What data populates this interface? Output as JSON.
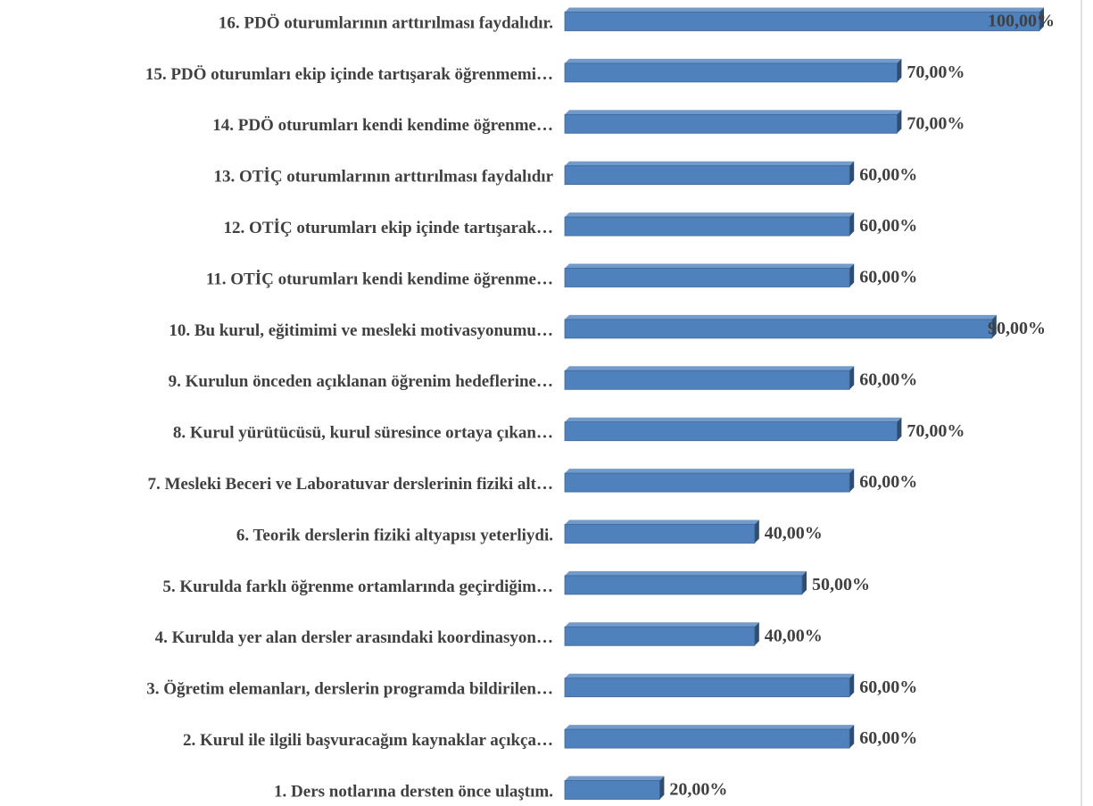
{
  "chart_data": {
    "type": "bar3d_horizontal",
    "categories": [
      "1. Ders notlarına dersten önce ulaştım.",
      "2. Kurul ile ilgili başvuracağım kaynaklar açıkça…",
      "3. Öğretim elemanları, derslerin programda bildirilen…",
      "4. Kurulda yer alan dersler arasındaki koordinasyon…",
      "5. Kurulda farklı öğrenme ortamlarında geçirdiğim…",
      "6. Teorik derslerin fiziki altyapısı yeterliydi.",
      "7. Mesleki Beceri ve Laboratuvar derslerinin fiziki alt…",
      "8. Kurul yürütücüsü, kurul süresince ortaya çıkan…",
      "9. Kurulun önceden açıklanan öğrenim hedeflerine…",
      "10. Bu kurul, eğitimimi ve mesleki motivasyonumu…",
      "11. OTİÇ oturumları kendi kendime öğrenme…",
      "12. OTİÇ  oturumları ekip içinde tartışarak…",
      "13. OTİÇ oturumlarının arttırılması faydalıdır",
      "14. PDÖ oturumları kendi kendime öğrenme…",
      "15. PDÖ  oturumları ekip içinde tartışarak öğrenmemi…",
      "16. PDÖ oturumlarının arttırılması faydalıdır."
    ],
    "values": [
      20,
      60,
      60,
      40,
      50,
      40,
      60,
      70,
      60,
      90,
      60,
      60,
      60,
      70,
      70,
      100
    ],
    "value_labels": [
      "20,00%",
      "60,00%",
      "60,00%",
      "40,00%",
      "50,00%",
      "40,00%",
      "60,00%",
      "70,00%",
      "60,00%",
      "90,00%",
      "60,00%",
      "60,00%",
      "60,00%",
      "70,00%",
      "70,00%",
      "100,00%"
    ],
    "color": "#4f81bd"
  }
}
